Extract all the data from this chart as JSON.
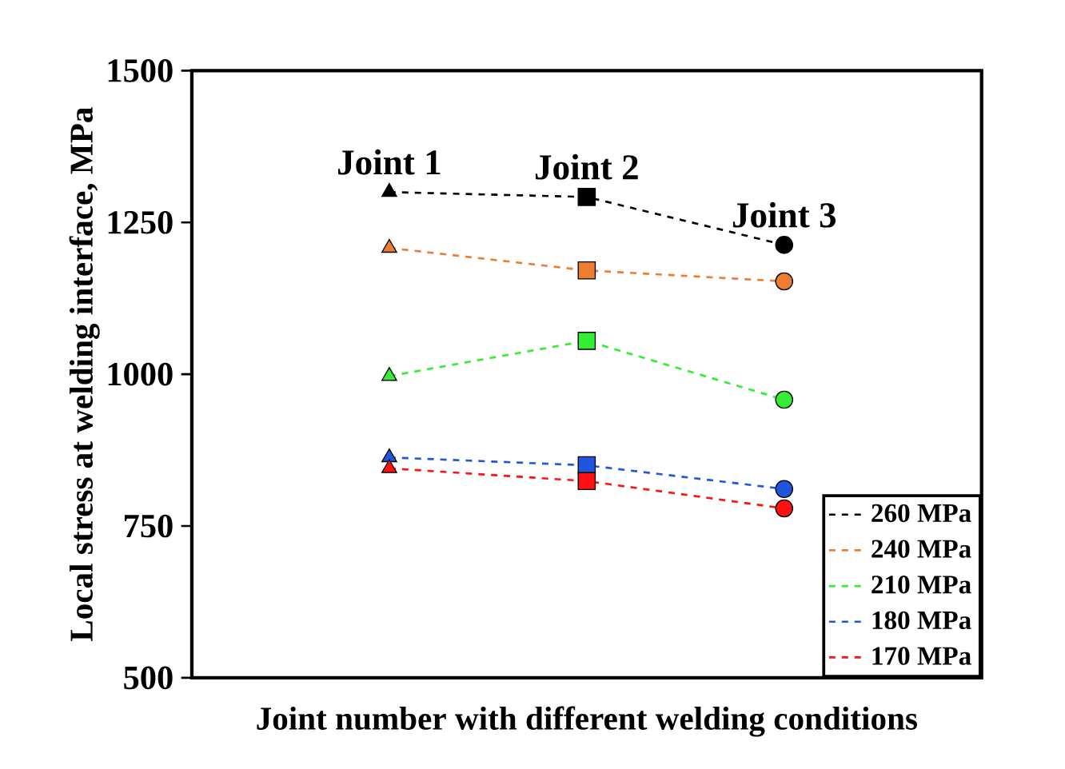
{
  "chart_data": {
    "type": "line",
    "xlabel": "Joint number with different welding conditions",
    "ylabel": "Local stress at welding interface, MPa",
    "categories": [
      "Joint 1",
      "Joint 2",
      "Joint 3"
    ],
    "ylim": [
      500,
      1500
    ],
    "yticks": [
      500,
      750,
      1000,
      1250,
      1500
    ],
    "grid": false,
    "legend": "bottom right",
    "line_style": "dashed",
    "marker": [
      "triangle",
      "square",
      "circle"
    ],
    "series": [
      {
        "name": "260 MPa",
        "color": "#000000",
        "values": [
          1300,
          1292,
          1213
        ]
      },
      {
        "name": "240 MPa",
        "color": "#ed7d31",
        "values": [
          1208,
          1171,
          1153
        ]
      },
      {
        "name": "210 MPa",
        "color": "#33ee33",
        "values": [
          997,
          1055,
          958
        ]
      },
      {
        "name": "180 MPa",
        "color": "#2255dd",
        "values": [
          863,
          850,
          811
        ]
      },
      {
        "name": "170 MPa",
        "color": "#ff1111",
        "values": [
          845,
          824,
          779
        ]
      }
    ]
  }
}
